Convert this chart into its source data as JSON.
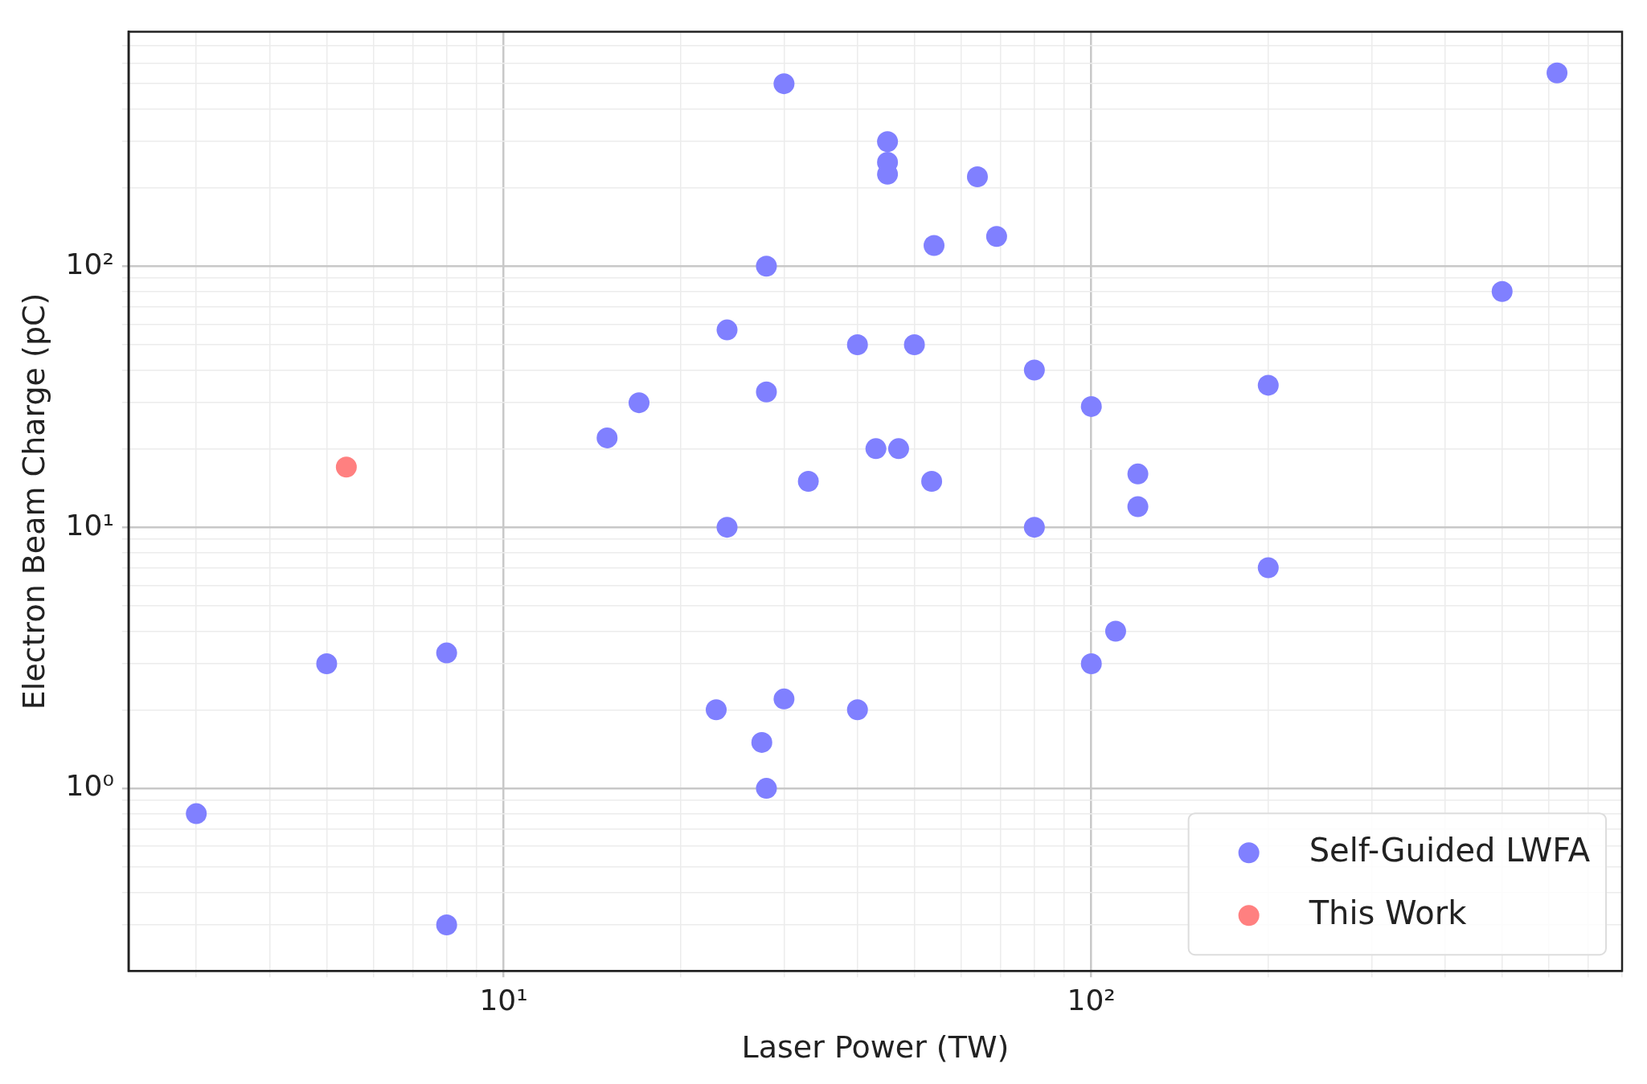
{
  "chart_data": {
    "type": "scatter",
    "xlabel": "Laser Power (TW)",
    "ylabel": "Electron Beam Charge (pC)",
    "log": "xy",
    "grid": true,
    "legend": "bottom right",
    "marker": "circle",
    "xlim": [
      2.3,
      800
    ],
    "ylim": [
      0.2,
      790
    ],
    "xticks": [
      {
        "value": 3,
        "label": null
      },
      {
        "value": 4,
        "label": null
      },
      {
        "value": 5,
        "label": null
      },
      {
        "value": 6,
        "label": null
      },
      {
        "value": 7,
        "label": null
      },
      {
        "value": 8,
        "label": null
      },
      {
        "value": 9,
        "label": null
      },
      {
        "value": 10,
        "label": "10¹"
      },
      {
        "value": 20,
        "label": null
      },
      {
        "value": 30,
        "label": null
      },
      {
        "value": 40,
        "label": null
      },
      {
        "value": 50,
        "label": null
      },
      {
        "value": 60,
        "label": null
      },
      {
        "value": 70,
        "label": null
      },
      {
        "value": 80,
        "label": null
      },
      {
        "value": 90,
        "label": null
      },
      {
        "value": 100,
        "label": "10²"
      },
      {
        "value": 200,
        "label": null
      },
      {
        "value": 300,
        "label": null
      },
      {
        "value": 400,
        "label": null
      },
      {
        "value": 500,
        "label": null
      },
      {
        "value": 600,
        "label": null
      },
      {
        "value": 700,
        "label": null
      },
      {
        "value": 800,
        "label": null
      }
    ],
    "yticks": [
      {
        "value": 0.3,
        "label": null
      },
      {
        "value": 0.4,
        "label": null
      },
      {
        "value": 0.5,
        "label": null
      },
      {
        "value": 0.6,
        "label": null
      },
      {
        "value": 0.7,
        "label": null
      },
      {
        "value": 0.8,
        "label": null
      },
      {
        "value": 0.9,
        "label": null
      },
      {
        "value": 1,
        "label": "10⁰"
      },
      {
        "value": 2,
        "label": null
      },
      {
        "value": 3,
        "label": null
      },
      {
        "value": 4,
        "label": null
      },
      {
        "value": 5,
        "label": null
      },
      {
        "value": 6,
        "label": null
      },
      {
        "value": 7,
        "label": null
      },
      {
        "value": 8,
        "label": null
      },
      {
        "value": 9,
        "label": null
      },
      {
        "value": 10,
        "label": "10¹"
      },
      {
        "value": 20,
        "label": null
      },
      {
        "value": 30,
        "label": null
      },
      {
        "value": 40,
        "label": null
      },
      {
        "value": 50,
        "label": null
      },
      {
        "value": 60,
        "label": null
      },
      {
        "value": 70,
        "label": null
      },
      {
        "value": 80,
        "label": null
      },
      {
        "value": 90,
        "label": null
      },
      {
        "value": 100,
        "label": "10²"
      },
      {
        "value": 200,
        "label": null
      },
      {
        "value": 300,
        "label": null
      },
      {
        "value": 400,
        "label": null
      },
      {
        "value": 500,
        "label": null
      },
      {
        "value": 600,
        "label": null
      },
      {
        "value": 700,
        "label": null
      }
    ],
    "series": [
      {
        "name": "Self-Guided LWFA",
        "color": "#8080ff",
        "x": [
          3,
          5,
          8,
          8,
          15,
          17,
          23,
          24,
          24,
          27.5,
          28,
          28,
          28,
          30,
          30,
          33,
          40,
          40,
          43,
          45,
          45,
          45,
          47,
          50,
          53.5,
          54,
          64,
          69,
          80,
          80,
          100,
          100,
          110,
          120,
          120,
          200,
          200,
          500,
          620
        ],
        "values": [
          0.8,
          3,
          3.3,
          0.3,
          22,
          30,
          2,
          57,
          10,
          1.5,
          100,
          33,
          1,
          2.2,
          500,
          15,
          2,
          50,
          20,
          300,
          250,
          225,
          20,
          50,
          15,
          120,
          220,
          130,
          40,
          10,
          29,
          3,
          4,
          16,
          12,
          35,
          7,
          80,
          550
        ]
      },
      {
        "name": "This Work",
        "color": "#ff8080",
        "x": [
          5.4
        ],
        "values": [
          17
        ]
      }
    ]
  }
}
